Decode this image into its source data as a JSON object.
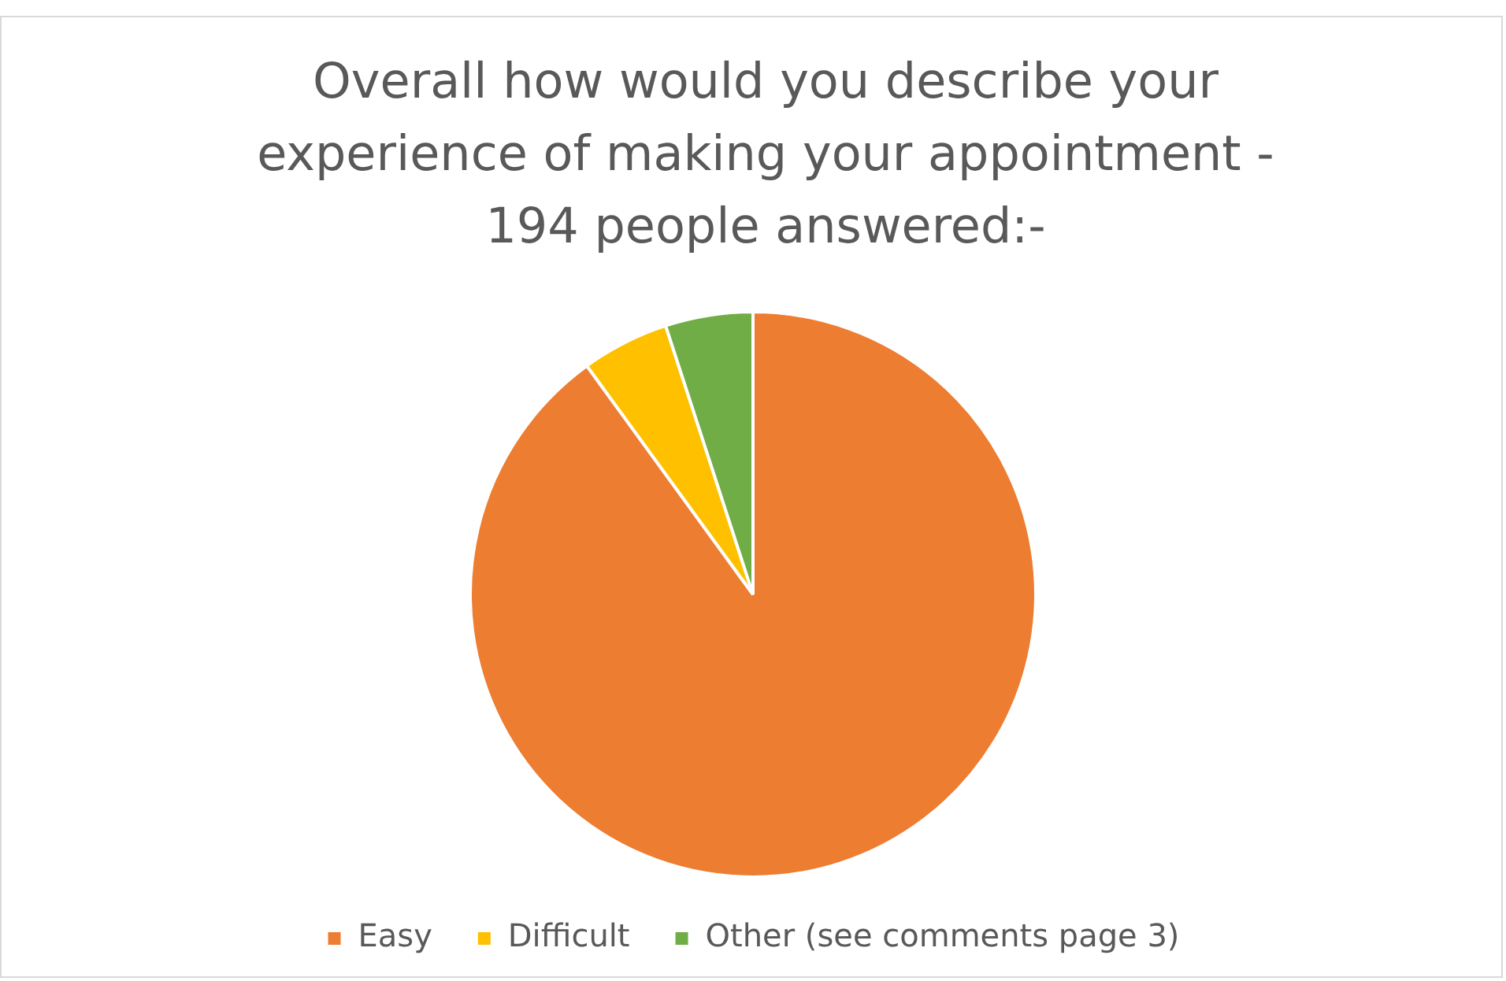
{
  "chart_data": {
    "type": "pie",
    "title": "Overall how would you describe your experience of making your appointment  - 194 people answered:-",
    "categories": [
      "Easy",
      "Difficult",
      "Other (see comments page 3)"
    ],
    "values": [
      90,
      5,
      5
    ],
    "colors": [
      "#ed7d31",
      "#ffc000",
      "#70ad47"
    ],
    "legend": "bottom"
  }
}
